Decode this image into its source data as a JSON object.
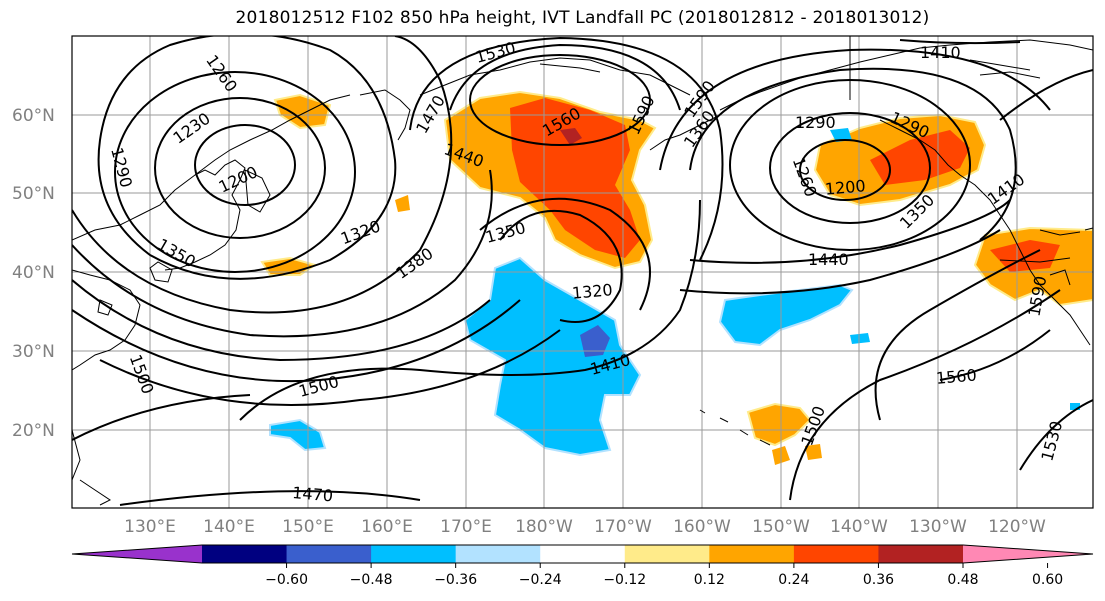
{
  "title": "2018012512 F102 850 hPa height, IVT Landfall PC (2018012812 - 2018013012)",
  "map": {
    "lat_labels": [
      "60°N",
      "50°N",
      "40°N",
      "30°N",
      "20°N"
    ],
    "lon_labels": [
      "130°E",
      "140°E",
      "150°E",
      "160°E",
      "170°E",
      "180°W",
      "170°W",
      "160°W",
      "150°W",
      "140°W",
      "130°W",
      "120°W"
    ],
    "contour_labels": [
      "1530",
      "1260",
      "1230",
      "1290",
      "1200",
      "1350",
      "1470",
      "1440",
      "1560",
      "1590",
      "1320",
      "1380",
      "1350",
      "1320",
      "1410",
      "1500",
      "1500",
      "1470",
      "1290",
      "1260",
      "1350",
      "1200",
      "1290",
      "1410",
      "1440",
      "1410",
      "1590",
      "1560",
      "1530",
      "1500",
      "1360",
      "1590"
    ]
  },
  "colorbar": {
    "colors": [
      "#9932cc",
      "#000080",
      "#3a5fcd",
      "#00bfff",
      "#b2e2ff",
      "#ffffff",
      "#ffeb8a",
      "#ffa500",
      "#ff4500",
      "#b22222",
      "#ff88b4"
    ],
    "ticks": [
      "−0.60",
      "−0.48",
      "−0.36",
      "−0.24",
      "−0.12",
      "0.12",
      "0.24",
      "0.36",
      "0.48",
      "0.60"
    ]
  },
  "colors": {
    "coast": "#000000",
    "grid": "#9a9a9a",
    "contour": "#000000"
  }
}
